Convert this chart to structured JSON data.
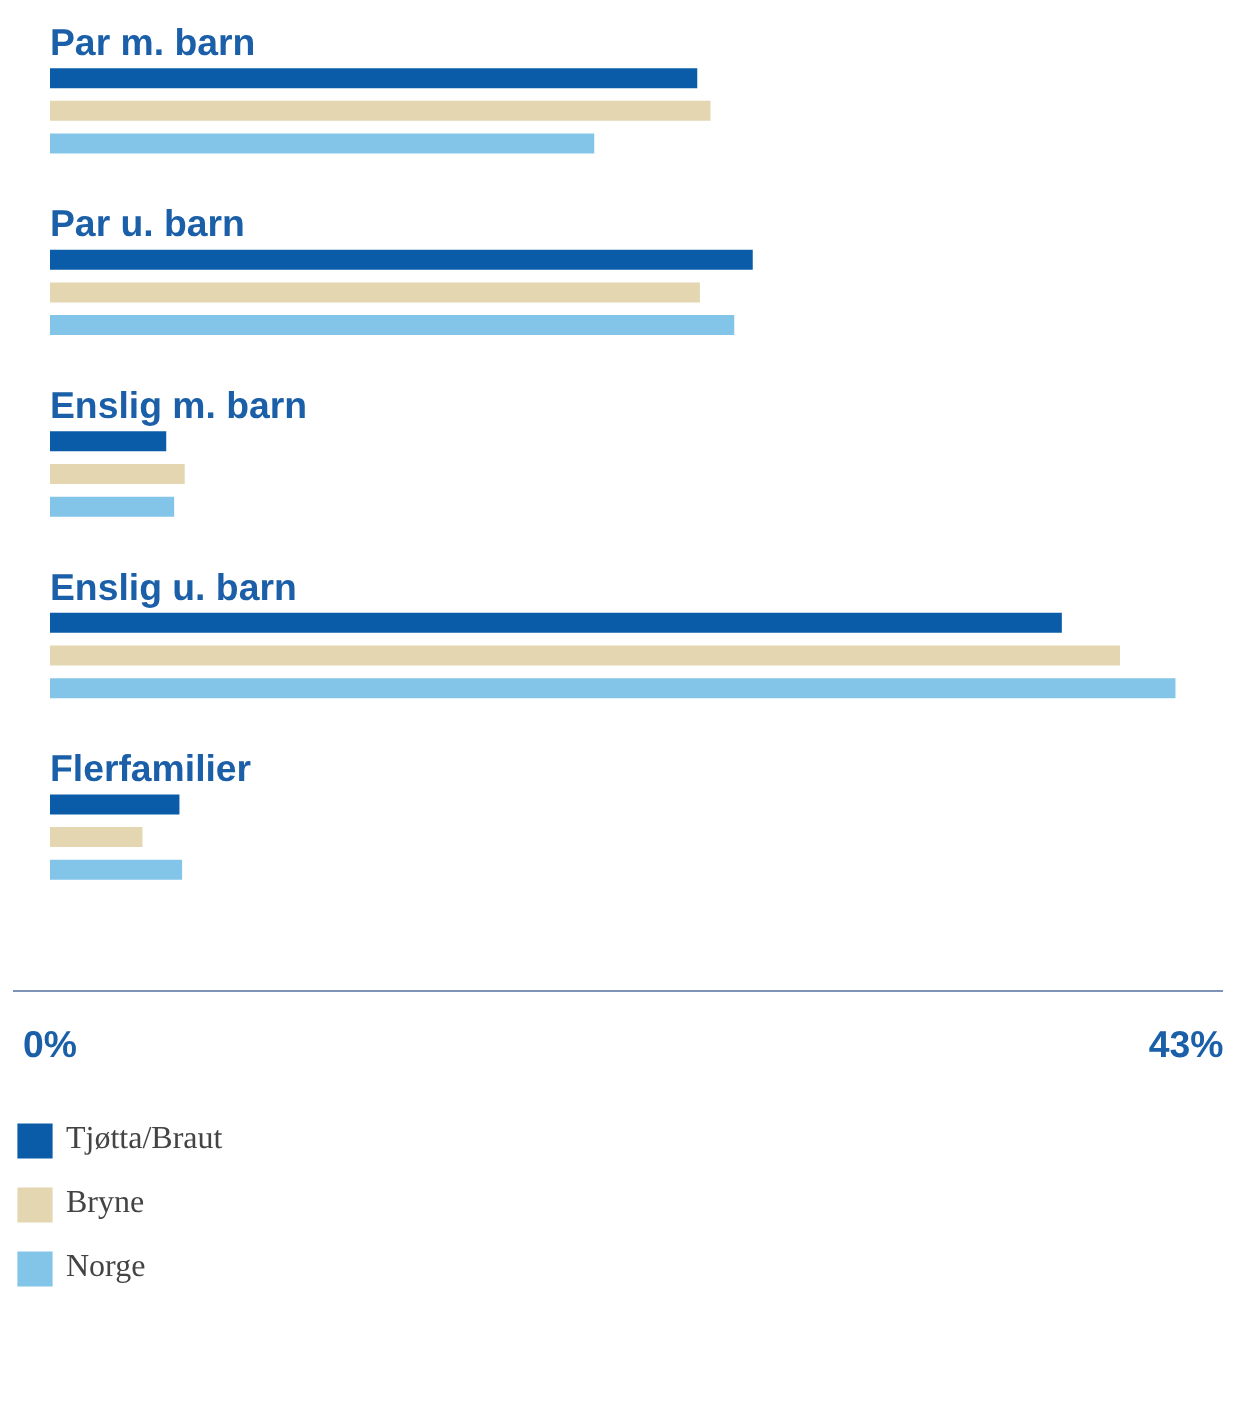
{
  "chart_data": {
    "type": "bar",
    "orientation": "horizontal",
    "categories": [
      "Par m. barn",
      "Par u. barn",
      "Enslig m. barn",
      "Enslig u. barn",
      "Flerfamilier"
    ],
    "series": [
      {
        "name": "Tjøtta/Braut",
        "color": "#0a5ca8",
        "values": [
          24.5,
          26.6,
          4.4,
          38.3,
          4.9
        ]
      },
      {
        "name": "Bryne",
        "color": "#e3d6b0",
        "values": [
          25.0,
          24.6,
          5.1,
          40.5,
          3.5
        ]
      },
      {
        "name": "Norge",
        "color": "#83c5e8",
        "values": [
          20.6,
          25.9,
          4.7,
          42.6,
          5.0
        ]
      }
    ],
    "xlim": [
      -1.4,
      44.4
    ],
    "xticks": [
      {
        "value": 0,
        "label": "0%"
      },
      {
        "value": 43,
        "label": "43%"
      }
    ],
    "legend": "bottom"
  }
}
